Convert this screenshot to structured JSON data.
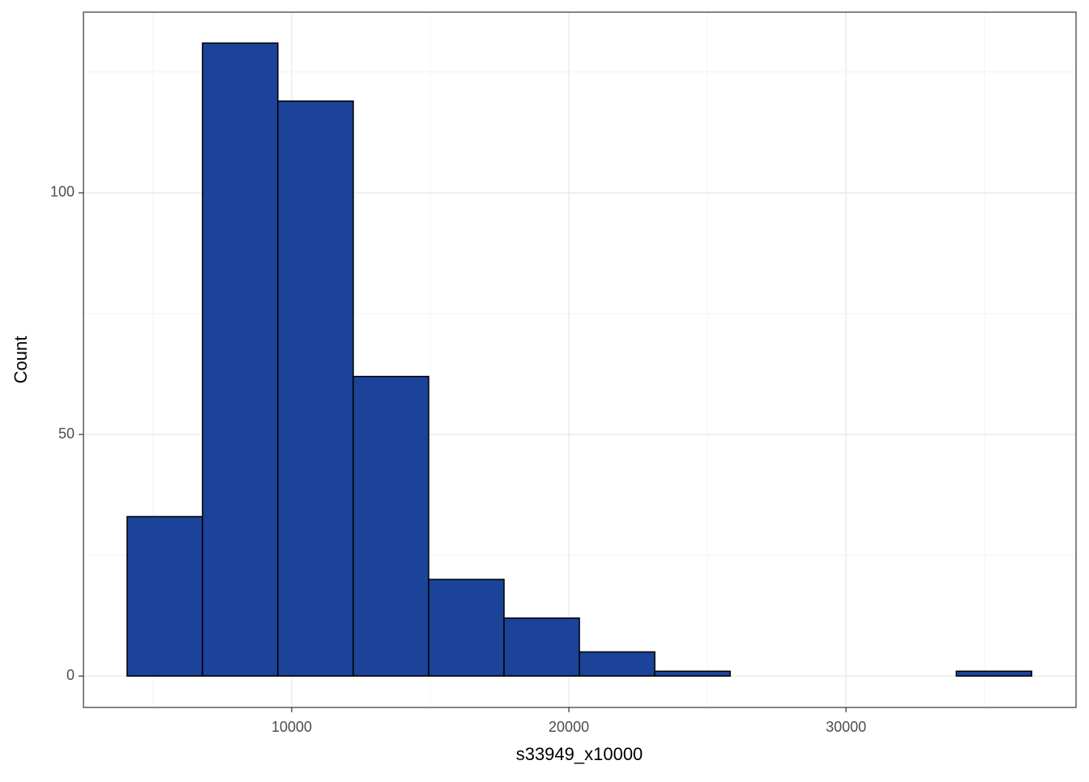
{
  "chart_data": {
    "type": "histogram",
    "x_label": "s33949_x10000",
    "y_label": "Count",
    "bins": [
      4060,
      6780,
      9500,
      12220,
      14940,
      17660,
      20380,
      23100,
      25820,
      28540,
      31260,
      33980,
      36700
    ],
    "values": [
      33,
      131,
      119,
      62,
      20,
      12,
      5,
      1,
      0,
      0,
      0,
      1
    ],
    "color": "#1a4399",
    "xlim": [
      2485,
      38300
    ],
    "xticks": [
      10000,
      20000,
      30000
    ],
    "ylim": [
      -6.5,
      137.4
    ],
    "yticks": [
      0,
      50,
      100
    ],
    "grid": true
  }
}
